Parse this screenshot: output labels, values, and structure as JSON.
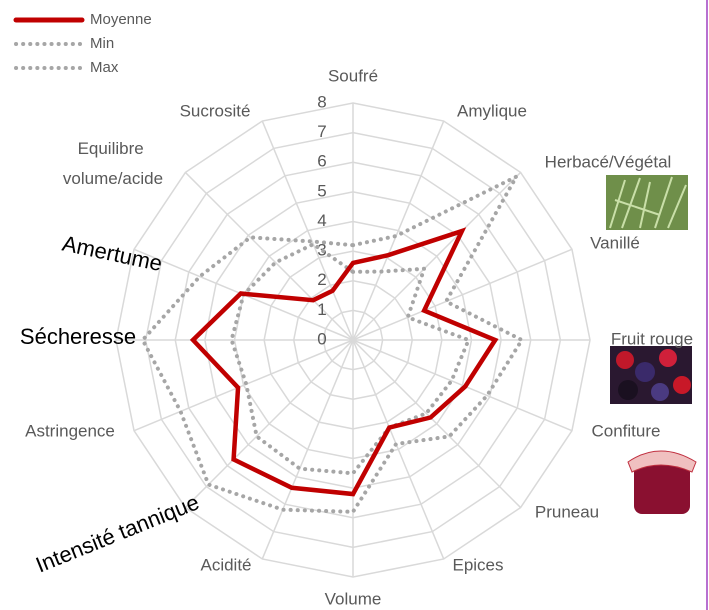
{
  "chart_data": {
    "type": "radar",
    "categories": [
      "Soufré",
      "Amylique",
      "Herbacé/Végétal",
      "Vanillé",
      "Fruit rouge",
      "Confiture",
      "Pruneau",
      "Epices",
      "Volume",
      "Acidité",
      "Intensité tannique",
      "Astringence",
      "Sécheresse",
      "Amertume",
      "Equilibre volume/acide",
      "Sucrosité"
    ],
    "series": [
      {
        "name": "Moyenne",
        "color": "#c00000",
        "values": [
          2.6,
          3.1,
          5.2,
          2.6,
          4.8,
          4.1,
          3.7,
          3.2,
          5.2,
          5.4,
          5.7,
          4.2,
          5.4,
          4.1,
          1.9,
          1.8
        ]
      },
      {
        "name": "Min",
        "color": "#a6a6a6",
        "values": [
          2.3,
          2.5,
          3.4,
          2.0,
          3.9,
          3.6,
          3.5,
          3.2,
          4.5,
          4.7,
          4.6,
          3.9,
          4.1,
          4.0,
          3.7,
          3.5
        ]
      },
      {
        "name": "Max",
        "color": "#a6a6a6",
        "values": [
          3.2,
          3.8,
          7.8,
          3.4,
          5.7,
          4.9,
          4.6,
          3.8,
          5.8,
          6.2,
          6.9,
          6.3,
          7.1,
          5.6,
          4.9,
          3.6
        ]
      }
    ],
    "ylim": [
      0,
      8
    ],
    "yticks": [
      0,
      1,
      2,
      3,
      4,
      5,
      6,
      7,
      8
    ],
    "grid": true
  }
}
